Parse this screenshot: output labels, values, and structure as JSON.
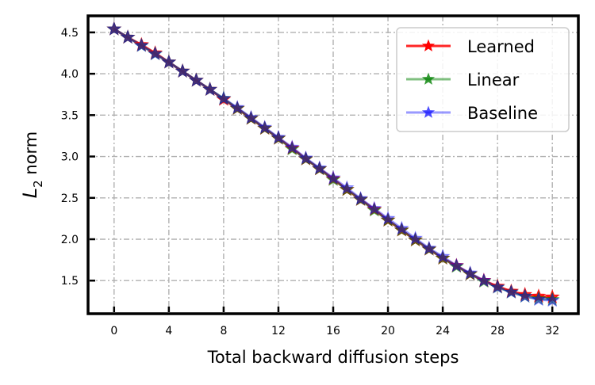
{
  "chart_data": {
    "type": "line",
    "xlabel": "Total backward diffusion steps",
    "ylabel_main": "L",
    "ylabel_sub": "2",
    "ylabel_rest": " norm",
    "xlim": [
      -1.9,
      33.9
    ],
    "ylim": [
      1.1,
      4.7
    ],
    "xticks": [
      0,
      4,
      8,
      12,
      16,
      20,
      24,
      28,
      32
    ],
    "yticks": [
      1.5,
      2.0,
      2.5,
      3.0,
      3.5,
      4.0,
      4.5
    ],
    "ytick_labels": [
      "1.5",
      "2.0",
      "2.5",
      "3.0",
      "3.5",
      "4.0",
      "4.5"
    ],
    "grid": true,
    "legend_position": "top-right",
    "x": [
      0,
      1,
      2,
      3,
      4,
      5,
      6,
      7,
      8,
      9,
      10,
      11,
      12,
      13,
      14,
      15,
      16,
      17,
      18,
      19,
      20,
      21,
      22,
      23,
      24,
      25,
      26,
      27,
      28,
      29,
      30,
      31,
      32
    ],
    "series": [
      {
        "name": "Learned",
        "color": "#ff0000",
        "opacity": 0.85,
        "marker": "star",
        "values": [
          4.54,
          4.44,
          4.35,
          4.25,
          4.14,
          4.03,
          3.92,
          3.81,
          3.69,
          3.58,
          3.46,
          3.34,
          3.22,
          3.1,
          2.97,
          2.85,
          2.73,
          2.6,
          2.48,
          2.36,
          2.23,
          2.11,
          1.99,
          1.88,
          1.77,
          1.68,
          1.58,
          1.5,
          1.43,
          1.37,
          1.33,
          1.31,
          1.3
        ]
      },
      {
        "name": "Linear",
        "color": "#008000",
        "opacity": 0.5,
        "marker": "star",
        "values": [
          4.54,
          4.44,
          4.34,
          4.24,
          4.14,
          4.03,
          3.92,
          3.81,
          3.7,
          3.58,
          3.46,
          3.34,
          3.22,
          3.09,
          2.97,
          2.85,
          2.72,
          2.6,
          2.48,
          2.35,
          2.23,
          2.11,
          1.99,
          1.88,
          1.77,
          1.67,
          1.58,
          1.49,
          1.42,
          1.36,
          1.31,
          1.28,
          1.27
        ]
      },
      {
        "name": "Baseline",
        "color": "#0000ff",
        "opacity": 0.4,
        "marker": "star",
        "values": [
          4.54,
          4.44,
          4.34,
          4.24,
          4.14,
          4.03,
          3.92,
          3.81,
          3.7,
          3.59,
          3.47,
          3.35,
          3.23,
          3.11,
          2.98,
          2.86,
          2.74,
          2.62,
          2.49,
          2.37,
          2.25,
          2.13,
          2.01,
          1.89,
          1.79,
          1.68,
          1.59,
          1.5,
          1.42,
          1.36,
          1.31,
          1.27,
          1.26
        ]
      }
    ]
  }
}
